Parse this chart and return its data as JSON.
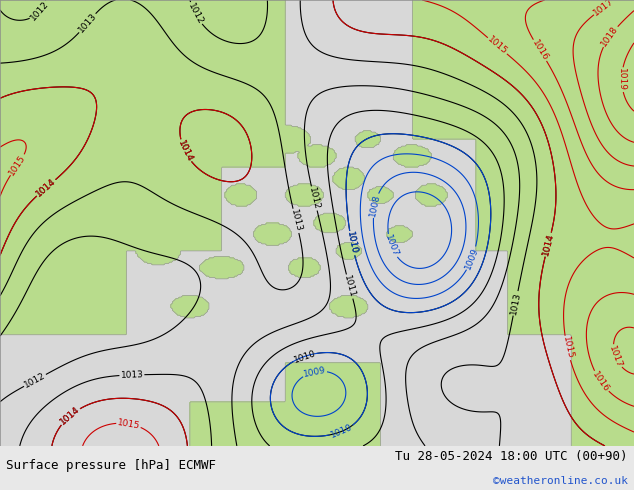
{
  "title_left": "Surface pressure [hPa] ECMWF",
  "title_right": "Tu 28-05-2024 18:00 UTC (00+90)",
  "credit": "©weatheronline.co.uk",
  "bg_color": "#e8e8e8",
  "land_color": "#b8dc8c",
  "sea_color": "#d8d8d8",
  "black_color": "#000000",
  "red_color": "#cc0000",
  "blue_color": "#0044cc",
  "gray_color": "#999999",
  "footer_bg": "#d0d0d0",
  "label_fontsize": 6.5,
  "footer_fontsize": 9,
  "credit_fontsize": 8,
  "credit_color": "#2255cc",
  "figsize": [
    6.34,
    4.9
  ],
  "dpi": 100
}
